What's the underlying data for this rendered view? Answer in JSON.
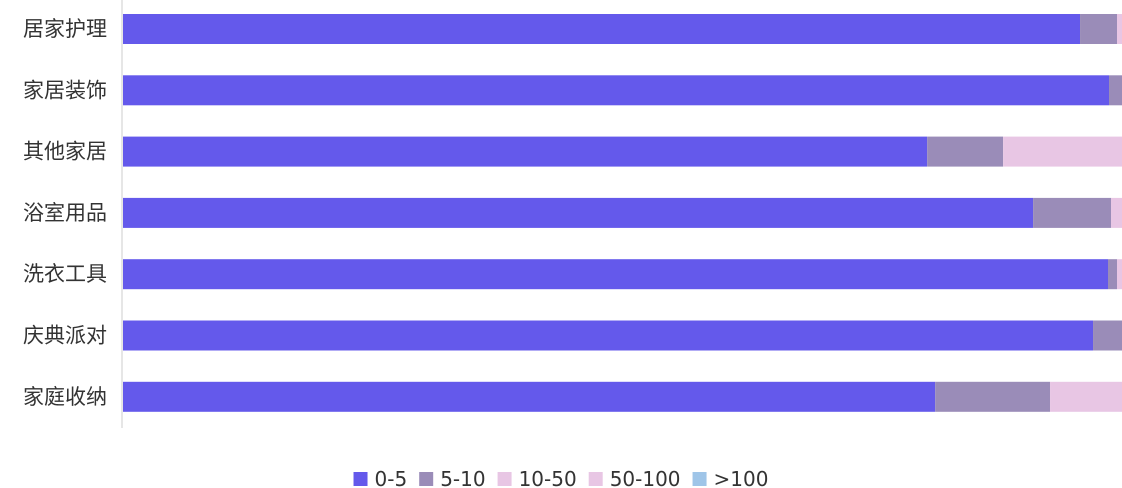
{
  "chart_data": {
    "type": "bar",
    "orientation": "horizontal",
    "stacked": true,
    "normalized": true,
    "categories": [
      "居家护理",
      "家居装饰",
      "其他家居",
      "浴室用品",
      "洗衣工具",
      "庆典派对",
      "家庭收纳"
    ],
    "series": [
      {
        "name": "0-5",
        "color": "#6459eb",
        "values": [
          95.8,
          98.7,
          80.5,
          91.1,
          98.6,
          97.1,
          81.3
        ]
      },
      {
        "name": "5-10",
        "color": "#9a8cb8",
        "values": [
          3.7,
          1.3,
          7.6,
          7.8,
          0.9,
          2.9,
          11.5
        ]
      },
      {
        "name": "10-50",
        "color": "#e8c6e4",
        "values": [
          0.5,
          0.0,
          11.9,
          1.1,
          0.5,
          0.0,
          7.2
        ]
      },
      {
        "name": "50-100",
        "color": "#e8c6e4",
        "values": [
          0,
          0,
          0,
          0,
          0,
          0,
          0
        ]
      },
      {
        "name": ">100",
        "color": "#9fc5e8",
        "values": [
          0,
          0,
          0,
          0,
          0,
          0,
          0
        ]
      }
    ],
    "xlim": [
      0,
      100
    ],
    "grid": false,
    "legend_position": "bottom"
  }
}
